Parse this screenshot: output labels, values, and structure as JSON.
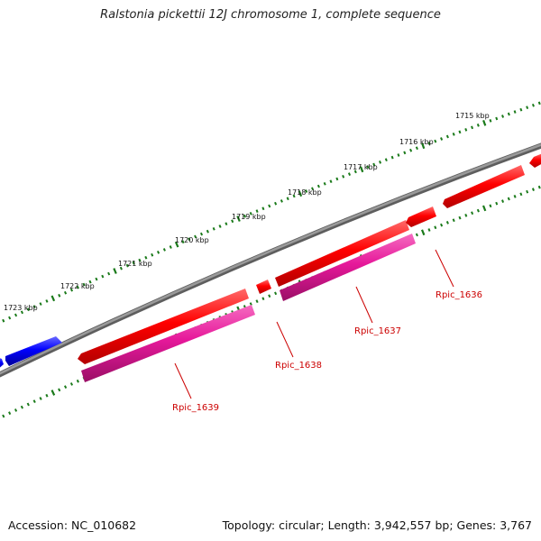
{
  "title": "Ralstonia pickettii 12J chromosome 1, complete sequence",
  "footer": {
    "accession": "Accession: NC_010682",
    "topology": "Topology: circular; Length: 3,942,557 bp; Genes: 3,767"
  },
  "ruler": {
    "labels": [
      "1715 kbp",
      "1716 kbp",
      "1717 kbp",
      "1718 kbp",
      "1719 kbp",
      "1720 kbp",
      "1721 kbp",
      "1722 kbp",
      "1723 kbp"
    ],
    "tick_color": "#1a7a1a"
  },
  "colors": {
    "backbone": "#808080",
    "forward_gene": "#ff0000",
    "reverse_gene": "#0000ff",
    "cds_feature": "#e6189a",
    "gene_label": "#cc0000"
  },
  "gene_labels": [
    "Rpic_1636",
    "Rpic_1637",
    "Rpic_1638",
    "Rpic_1639"
  ]
}
